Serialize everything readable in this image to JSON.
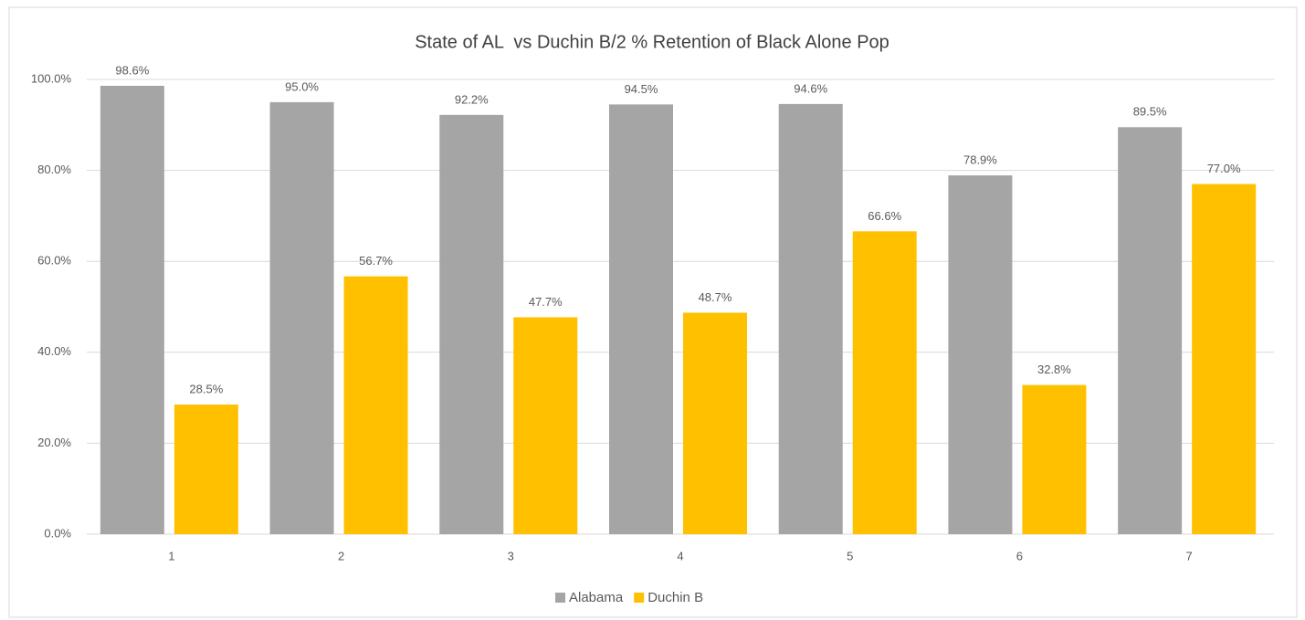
{
  "chart_data": {
    "type": "bar",
    "title": "State of AL  vs Duchin B/2 % Retention of Black Alone Pop",
    "categories": [
      "1",
      "2",
      "3",
      "4",
      "5",
      "6",
      "7"
    ],
    "series": [
      {
        "name": "Alabama",
        "color": "#a5a5a5",
        "values": [
          98.6,
          95.0,
          92.2,
          94.5,
          94.6,
          78.9,
          89.5
        ],
        "value_labels": [
          "98.6%",
          "95.0%",
          "92.2%",
          "94.5%",
          "94.6%",
          "78.9%",
          "89.5%"
        ]
      },
      {
        "name": "Duchin B",
        "color": "#ffc000",
        "values": [
          28.5,
          56.7,
          47.7,
          48.7,
          66.6,
          32.8,
          77.0
        ],
        "value_labels": [
          "28.5%",
          "56.7%",
          "47.7%",
          "48.7%",
          "66.6%",
          "32.8%",
          "77.0%"
        ]
      }
    ],
    "ylim": [
      0,
      100
    ],
    "yticks": [
      {
        "value": 0,
        "label": "0.0%"
      },
      {
        "value": 20,
        "label": "20.0%"
      },
      {
        "value": 40,
        "label": "40.0%"
      },
      {
        "value": 60,
        "label": "60.0%"
      },
      {
        "value": 80,
        "label": "80.0%"
      },
      {
        "value": 100,
        "label": "100.0%"
      }
    ],
    "grid": true,
    "legend": "bottom"
  }
}
